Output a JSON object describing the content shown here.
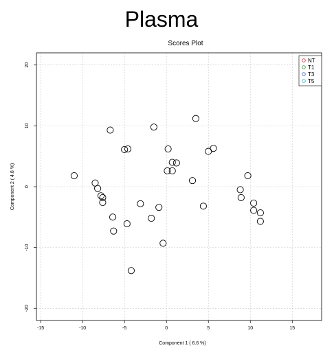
{
  "page_title": "Plasma",
  "chart_data": {
    "type": "scatter",
    "title": "Scores Plot",
    "xlabel": "Component 1 ( 6.6 %)",
    "ylabel": "Component 2 ( 4.8 %)",
    "xlim": [
      -15.5,
      18.5
    ],
    "ylim": [
      -22,
      22
    ],
    "xticks": [
      "-15",
      "-10",
      "-5",
      "0",
      "5",
      "10",
      "15"
    ],
    "xtick_values": [
      -15,
      -10,
      -5,
      0,
      5,
      10,
      15
    ],
    "yticks": [
      "-20",
      "-10",
      "0",
      "10",
      "20"
    ],
    "ytick_values": [
      -20,
      -10,
      0,
      10,
      20
    ],
    "grid": true,
    "legend": {
      "placement": "top-right",
      "entries": [
        {
          "label": "NT",
          "color": "#e8344a"
        },
        {
          "label": "T1",
          "color": "#3aa338"
        },
        {
          "label": "T3",
          "color": "#4a6bd0"
        },
        {
          "label": "T5",
          "color": "#34b4d8"
        }
      ]
    },
    "marker_color": "#000000",
    "points": [
      {
        "x": -11.0,
        "y": 1.8
      },
      {
        "x": -8.5,
        "y": 0.6
      },
      {
        "x": -8.2,
        "y": -0.3
      },
      {
        "x": -7.8,
        "y": -1.5
      },
      {
        "x": -7.6,
        "y": -1.8
      },
      {
        "x": -7.6,
        "y": -2.6
      },
      {
        "x": -6.7,
        "y": 9.3
      },
      {
        "x": -6.4,
        "y": -5.0
      },
      {
        "x": -6.3,
        "y": -7.3
      },
      {
        "x": -5.0,
        "y": 6.1
      },
      {
        "x": -4.6,
        "y": 6.2
      },
      {
        "x": -4.7,
        "y": -6.1
      },
      {
        "x": -4.2,
        "y": -13.8
      },
      {
        "x": -3.1,
        "y": -2.8
      },
      {
        "x": -1.8,
        "y": -5.2
      },
      {
        "x": -1.5,
        "y": 9.8
      },
      {
        "x": -0.9,
        "y": -3.4
      },
      {
        "x": -0.4,
        "y": -9.3
      },
      {
        "x": 0.1,
        "y": 2.6
      },
      {
        "x": 0.2,
        "y": 6.2
      },
      {
        "x": 0.7,
        "y": 4.0
      },
      {
        "x": 0.7,
        "y": 2.6
      },
      {
        "x": 1.2,
        "y": 3.9
      },
      {
        "x": 3.1,
        "y": 1.0
      },
      {
        "x": 3.5,
        "y": 11.2
      },
      {
        "x": 4.4,
        "y": -3.2
      },
      {
        "x": 5.0,
        "y": 5.8
      },
      {
        "x": 5.6,
        "y": 6.3
      },
      {
        "x": 8.8,
        "y": -0.5
      },
      {
        "x": 8.9,
        "y": -1.8
      },
      {
        "x": 9.7,
        "y": 1.8
      },
      {
        "x": 10.4,
        "y": -2.7
      },
      {
        "x": 10.4,
        "y": -3.9
      },
      {
        "x": 11.2,
        "y": -4.3
      },
      {
        "x": 11.2,
        "y": -5.7
      }
    ]
  }
}
